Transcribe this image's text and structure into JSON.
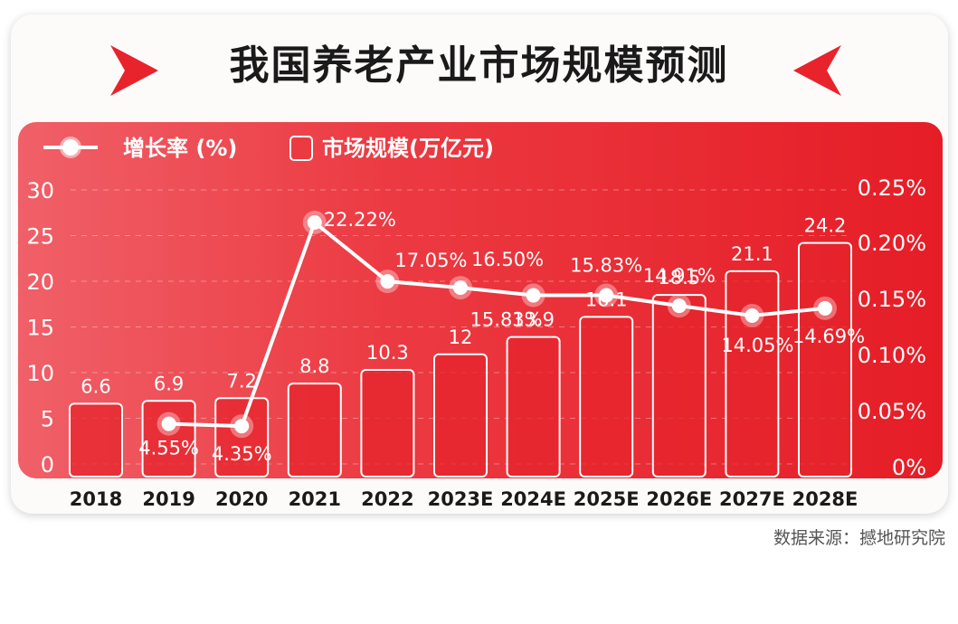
{
  "title": "我国养老产业市场规模预测",
  "source": "数据来源：撼地研究院",
  "colors": {
    "accent": "#e51d26",
    "bar": "#ec3a42",
    "line": "#ffffff"
  },
  "chart_data": {
    "type": "bar",
    "categories": [
      "2018",
      "2019",
      "2020",
      "2021",
      "2022",
      "2023E",
      "2024E",
      "2025E",
      "2026E",
      "2027E",
      "2028E"
    ],
    "series": [
      {
        "name": "市场规模(万亿元)",
        "type": "bar",
        "axis": "left",
        "values": [
          6.6,
          6.9,
          7.2,
          8.8,
          10.3,
          12,
          13.9,
          16.1,
          18.5,
          21.1,
          24.2
        ],
        "labels": [
          "6.6",
          "6.9",
          "7.2",
          "8.8",
          "10.3",
          "12",
          "13.9",
          "16.1",
          "18.5",
          "21.1",
          "24.2"
        ]
      },
      {
        "name": "增长率 (%)",
        "type": "line",
        "axis": "right",
        "values": [
          null,
          4.55,
          4.35,
          22.22,
          17.05,
          16.5,
          15.83,
          15.83,
          14.91,
          14.05,
          14.69
        ],
        "labels": [
          null,
          "4.55%",
          "4.35%",
          "22.22%",
          "17.05%",
          "16.50%",
          "15.83%",
          "15.83%",
          "14.91%",
          "14.05%",
          "14.69%"
        ]
      }
    ],
    "y_left": {
      "min": 0,
      "max": 30,
      "ticks": [
        "0",
        "5",
        "10",
        "15",
        "20",
        "25",
        "30"
      ]
    },
    "y_right": {
      "ticks": [
        "0%",
        "0.05%",
        "0.10%",
        "0.15%",
        "0.20%",
        "0.25%"
      ]
    },
    "legend_position": "top-left",
    "grid": true
  }
}
